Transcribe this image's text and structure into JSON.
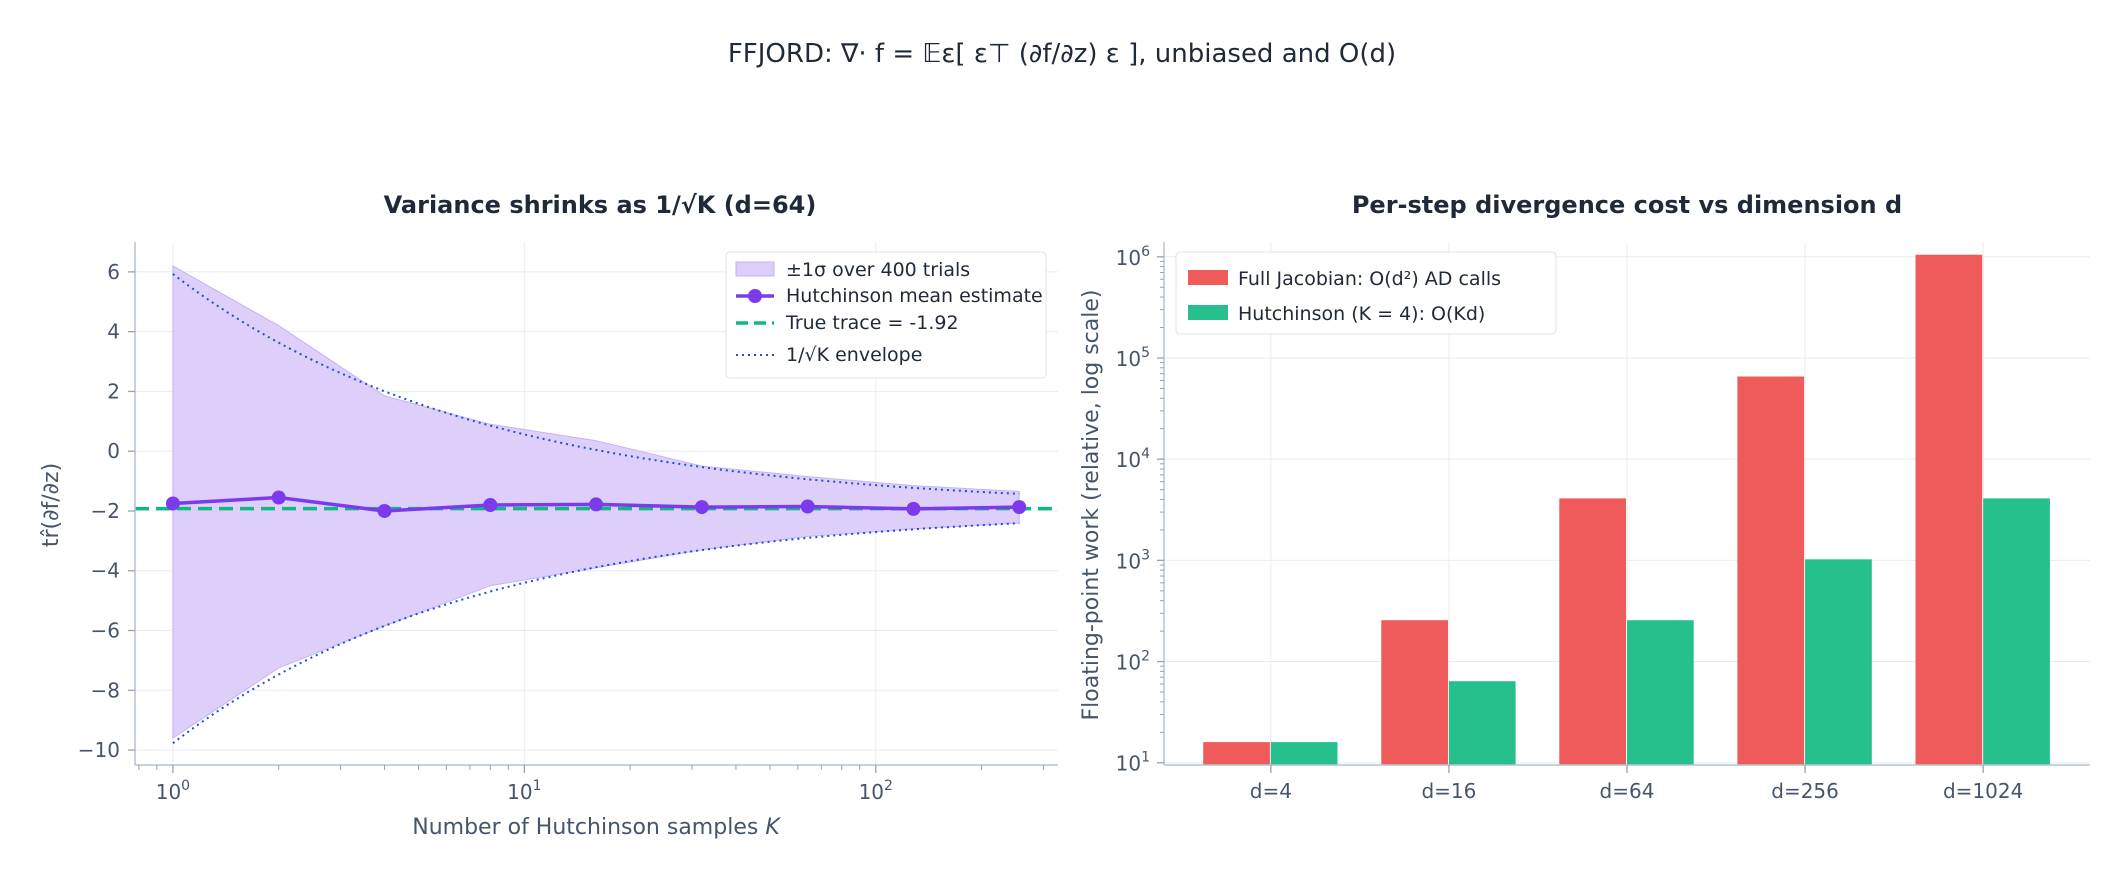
{
  "suptitle": "FFJORD: ∇· f = 𝔼ε[ ε⊤ (∂f/∂z) ε ],  unbiased and O(d)",
  "chart_data": [
    {
      "type": "line",
      "title_prefix": "Variance shrinks as 1/√K",
      "title_suffix": "(d=64)",
      "xlabel": "Number of Hutchinson samples K",
      "ylabel": "tr̂(∂f/∂z)",
      "xscale": "log",
      "xlim": [
        0.78,
        330
      ],
      "ylim": [
        -10.5,
        7
      ],
      "yticks": [
        6,
        4,
        2,
        0,
        -2,
        -4,
        -6,
        -8,
        -10
      ],
      "ytick_labels": [
        "6",
        "4",
        "2",
        "0",
        "−2",
        "−4",
        "−6",
        "−8",
        "−10"
      ],
      "xtick_labels": [
        {
          "base": "10",
          "exp": "0"
        },
        {
          "base": "10",
          "exp": "1"
        },
        {
          "base": "10",
          "exp": "2"
        }
      ],
      "x": [
        1,
        2,
        4,
        8,
        16,
        32,
        64,
        128,
        256
      ],
      "mean": [
        -1.75,
        -1.55,
        -2.0,
        -1.8,
        -1.78,
        -1.87,
        -1.85,
        -1.93,
        -1.87
      ],
      "band_upper": [
        6.2,
        4.2,
        1.85,
        0.9,
        0.35,
        -0.5,
        -0.85,
        -1.15,
        -1.35
      ],
      "band_lower": [
        -9.6,
        -7.25,
        -5.85,
        -4.5,
        -3.9,
        -3.3,
        -2.85,
        -2.6,
        -2.4
      ],
      "true_trace": -1.92,
      "envelope_scale": 7.85,
      "grid": true,
      "legend_position": "upper-right",
      "legend": [
        "±1σ over 400 trials",
        "Hutchinson mean estimate",
        "True trace = -1.92",
        "1/√K envelope"
      ],
      "colors": {
        "band": "#ddcdfa",
        "mean": "#7c3aed",
        "true": "#10b981",
        "envelope": "#1d4ed8"
      }
    },
    {
      "type": "bar",
      "title": "Per-step divergence cost vs dimension d",
      "ylabel": "Floating-point work (relative, log scale)",
      "yscale": "log",
      "ylim": [
        9.5,
        1400000
      ],
      "categories": [
        "d=4",
        "d=16",
        "d=64",
        "d=256",
        "d=1024"
      ],
      "ytick_labels": [
        {
          "base": "10",
          "exp": "1"
        },
        {
          "base": "10",
          "exp": "2"
        },
        {
          "base": "10",
          "exp": "3"
        },
        {
          "base": "10",
          "exp": "4"
        },
        {
          "base": "10",
          "exp": "5"
        },
        {
          "base": "10",
          "exp": "6"
        }
      ],
      "series": [
        {
          "name": "Full Jacobian:  O(d²) AD calls",
          "values": [
            16,
            256,
            4096,
            65536,
            1048576
          ],
          "color": "#ef5b5b"
        },
        {
          "name": "Hutchinson (K = 4):  O(Kd)",
          "values": [
            16,
            64,
            256,
            1024,
            4096
          ],
          "color": "#26c08d"
        }
      ],
      "grid": true,
      "legend_position": "upper-left"
    }
  ]
}
